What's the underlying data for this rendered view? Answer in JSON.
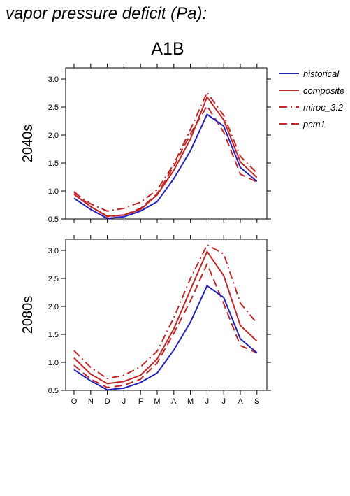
{
  "header": {
    "title": "vapor pressure deficit (Pa):",
    "scenario": "A1B"
  },
  "chart_data": [
    {
      "type": "line",
      "panel_label": "2040s",
      "categories": [
        "O",
        "N",
        "D",
        "J",
        "F",
        "M",
        "A",
        "M",
        "J",
        "J",
        "A",
        "S"
      ],
      "ylim": [
        0.5,
        3.2
      ],
      "yticks": [
        "0.5",
        "1.0",
        "1.5",
        "2.0",
        "2.5",
        "3.0"
      ],
      "series": [
        {
          "name": "historical",
          "values": [
            0.87,
            0.67,
            0.51,
            0.54,
            0.64,
            0.81,
            1.22,
            1.72,
            2.37,
            2.16,
            1.42,
            1.17
          ]
        },
        {
          "name": "composite",
          "values": [
            0.94,
            0.72,
            0.55,
            0.57,
            0.67,
            0.93,
            1.37,
            1.93,
            2.68,
            2.27,
            1.52,
            1.24
          ]
        },
        {
          "name": "miroc_3.2",
          "values": [
            0.97,
            0.77,
            0.64,
            0.69,
            0.8,
            1.02,
            1.48,
            2.1,
            2.76,
            2.35,
            1.62,
            1.32
          ]
        },
        {
          "name": "pcm1",
          "values": [
            0.99,
            0.72,
            0.54,
            0.57,
            0.69,
            0.95,
            1.44,
            2.02,
            2.52,
            2.05,
            1.3,
            1.16
          ]
        }
      ]
    },
    {
      "type": "line",
      "panel_label": "2080s",
      "categories": [
        "O",
        "N",
        "D",
        "J",
        "F",
        "M",
        "A",
        "M",
        "J",
        "J",
        "A",
        "S"
      ],
      "ylim": [
        0.5,
        3.2
      ],
      "yticks": [
        "0.5",
        "1.0",
        "1.5",
        "2.0",
        "2.5",
        "3.0"
      ],
      "series": [
        {
          "name": "historical",
          "values": [
            0.87,
            0.67,
            0.51,
            0.54,
            0.64,
            0.81,
            1.22,
            1.72,
            2.37,
            2.16,
            1.42,
            1.17
          ]
        },
        {
          "name": "composite",
          "values": [
            1.08,
            0.79,
            0.62,
            0.66,
            0.77,
            1.06,
            1.6,
            2.3,
            2.98,
            2.55,
            1.66,
            1.38
          ]
        },
        {
          "name": "miroc_3.2",
          "values": [
            1.21,
            0.91,
            0.71,
            0.77,
            0.92,
            1.2,
            1.8,
            2.5,
            3.1,
            2.94,
            2.06,
            1.7
          ]
        },
        {
          "name": "pcm1",
          "values": [
            0.95,
            0.7,
            0.55,
            0.59,
            0.7,
            0.99,
            1.52,
            2.1,
            2.76,
            2.05,
            1.3,
            1.17
          ]
        }
      ]
    }
  ],
  "legend": [
    {
      "name": "historical",
      "color": "#2222bb",
      "dash": "solid"
    },
    {
      "name": "composite",
      "color": "#c02828",
      "dash": "solid"
    },
    {
      "name": "miroc_3.2",
      "color": "#c02828",
      "dash": "dashdot"
    },
    {
      "name": "pcm1",
      "color": "#c02828",
      "dash": "dashed"
    }
  ]
}
